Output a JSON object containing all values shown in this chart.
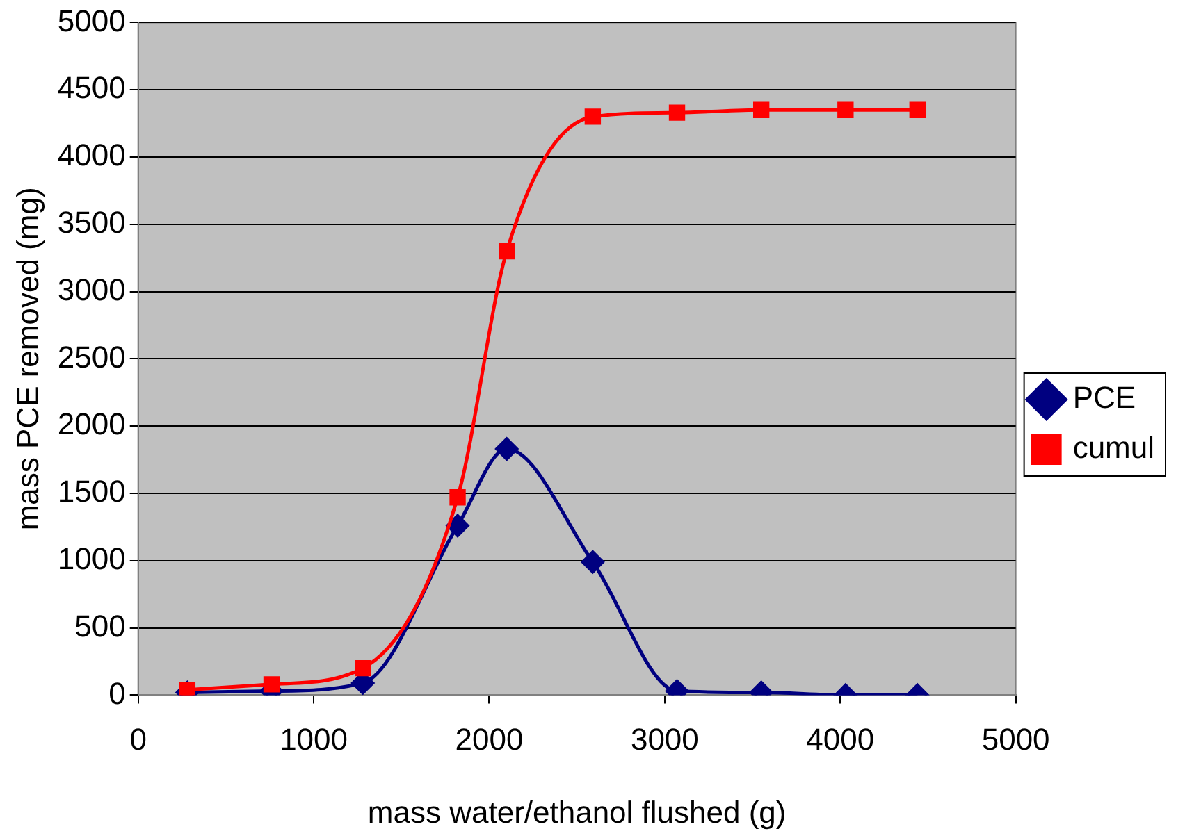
{
  "chart_data": {
    "type": "line",
    "xlabel": "mass water/ethanol flushed (g)",
    "ylabel": "mass PCE removed (mg)",
    "x": [
      280,
      760,
      1280,
      1820,
      2100,
      2590,
      3070,
      3550,
      4030,
      4440
    ],
    "series": [
      {
        "name": "PCE",
        "color": "#000080",
        "marker": "diamond",
        "values": [
          20,
          30,
          90,
          1260,
          1830,
          990,
          30,
          20,
          0,
          0
        ]
      },
      {
        "name": "cumul",
        "color": "#ff0000",
        "marker": "square",
        "values": [
          40,
          80,
          200,
          1470,
          3300,
          4300,
          4330,
          4350,
          4350,
          4350
        ]
      }
    ],
    "xlim": [
      0,
      5000
    ],
    "xticks": [
      0,
      1000,
      2000,
      3000,
      4000,
      5000
    ],
    "ylim": [
      0,
      5000
    ],
    "yticks": [
      0,
      500,
      1000,
      1500,
      2000,
      2500,
      3000,
      3500,
      4000,
      4500,
      5000
    ],
    "grid": "y",
    "legend": "right"
  }
}
